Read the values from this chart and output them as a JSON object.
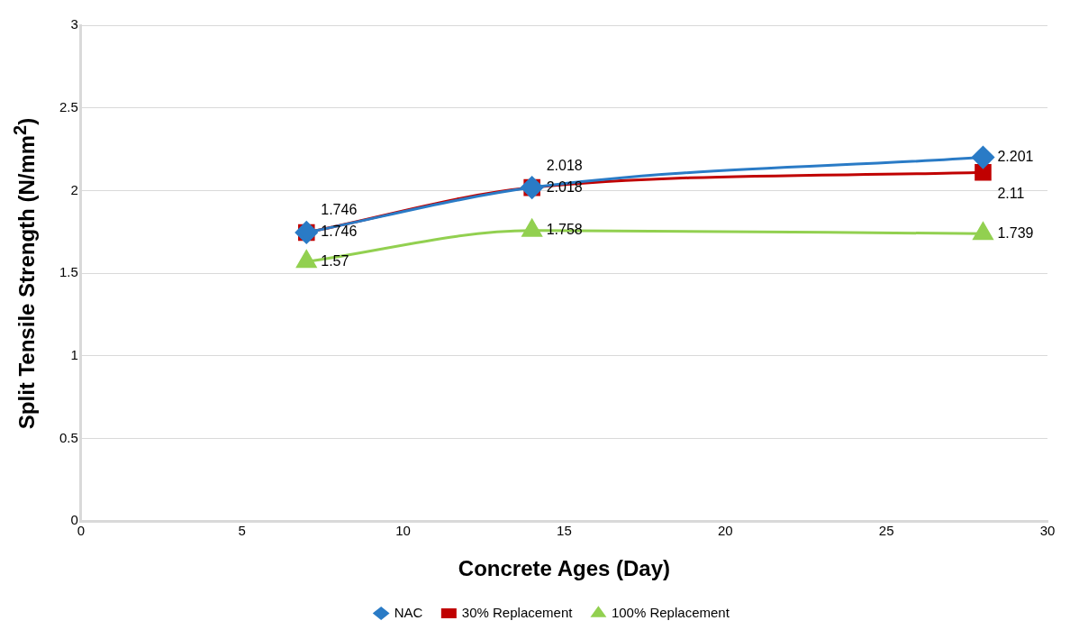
{
  "chart_data": {
    "type": "line",
    "xlabel": "Concrete Ages (Day)",
    "ylabel": "Split Tensile Strength (N/mm$^{2}$)",
    "x": [
      7,
      14,
      28
    ],
    "series": [
      {
        "name": "NAC",
        "color": "#2a7bc6",
        "marker": "diamond",
        "values": [
          1.746,
          2.018,
          2.201
        ]
      },
      {
        "name": "30% Replacement",
        "color": "#c00000",
        "marker": "square",
        "values": [
          1.746,
          2.018,
          2.11
        ]
      },
      {
        "name": "100% Replacement",
        "color": "#92d050",
        "marker": "triangle",
        "values": [
          1.57,
          1.758,
          1.739
        ]
      }
    ],
    "xlim": [
      0,
      30
    ],
    "xticks": [
      0,
      5,
      10,
      15,
      20,
      25,
      30
    ],
    "ylim": [
      0,
      3
    ],
    "yticks": [
      0,
      0.5,
      1,
      1.5,
      2,
      2.5,
      3
    ],
    "grid": "y",
    "legend": "bottom",
    "data_labels": true,
    "line_style": "solid"
  }
}
